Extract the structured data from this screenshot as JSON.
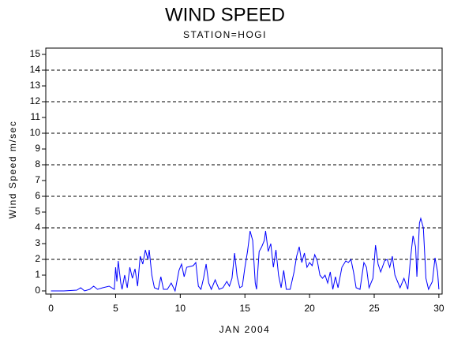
{
  "chart_data": {
    "type": "line",
    "title": "WIND SPEED",
    "subtitle": "STATION=HOGI",
    "xlabel": "JAN 2004",
    "ylabel": "Wind Speed m/sec",
    "color": "#0000ff",
    "x": [
      0,
      1,
      2,
      2.3,
      2.6,
      3,
      3.3,
      3.6,
      4,
      4.5,
      4.9,
      5.0,
      5.1,
      5.2,
      5.4,
      5.5,
      5.7,
      5.9,
      6.1,
      6.3,
      6.5,
      6.7,
      6.9,
      7.1,
      7.3,
      7.5,
      7.6,
      7.8,
      8.0,
      8.3,
      8.5,
      8.7,
      9.0,
      9.3,
      9.6,
      9.9,
      10.1,
      10.3,
      10.5,
      11,
      11.2,
      11.4,
      11.6,
      11.8,
      12.0,
      12.2,
      12.4,
      12.7,
      13.0,
      13.3,
      13.6,
      13.8,
      14.0,
      14.2,
      14.4,
      14.6,
      14.8,
      15.0,
      15.2,
      15.4,
      15.6,
      15.8,
      15.9,
      16.1,
      16.3,
      16.5,
      16.6,
      16.8,
      17.0,
      17.2,
      17.4,
      17.6,
      17.8,
      18.0,
      18.2,
      18.5,
      18.8,
      19.0,
      19.2,
      19.4,
      19.6,
      19.8,
      20.0,
      20.2,
      20.4,
      20.6,
      20.8,
      21.0,
      21.2,
      21.4,
      21.6,
      21.8,
      22.0,
      22.2,
      22.5,
      22.8,
      23.0,
      23.2,
      23.4,
      23.6,
      23.9,
      24.2,
      24.4,
      24.6,
      24.9,
      25.1,
      25.3,
      25.5,
      25.8,
      26.0,
      26.2,
      26.4,
      26.6,
      26.8,
      27.0,
      27.3,
      27.6,
      27.8,
      28.0,
      28.2,
      28.3,
      28.5,
      28.6,
      28.8,
      29.0,
      29.2,
      29.5,
      29.7,
      29.9,
      30.0
    ],
    "values": [
      0,
      0,
      0.05,
      0.2,
      0,
      0.1,
      0.3,
      0.1,
      0.2,
      0.3,
      0.1,
      1.5,
      0.6,
      1.9,
      0.5,
      0.1,
      1.0,
      0.2,
      1.5,
      0.8,
      1.4,
      0.3,
      2.2,
      1.7,
      2.6,
      2.0,
      2.6,
      1.0,
      0.2,
      0.1,
      0.9,
      0.1,
      0.1,
      0.5,
      0,
      1.3,
      1.7,
      0.9,
      1.5,
      1.6,
      1.8,
      0.3,
      0.1,
      0.8,
      1.7,
      0.5,
      0.1,
      0.7,
      0.1,
      0.2,
      0.6,
      0.3,
      0.8,
      2.4,
      0.9,
      0.2,
      0.3,
      1.5,
      2.5,
      3.8,
      3.2,
      0.5,
      0.1,
      2.5,
      2.8,
      3.2,
      3.8,
      2.5,
      3.0,
      1.5,
      2.6,
      1.0,
      0.2,
      1.3,
      0.1,
      0.1,
      1.2,
      2.2,
      2.8,
      1.8,
      2.4,
      1.5,
      1.8,
      1.6,
      2.3,
      1.9,
      1.0,
      0.8,
      1.0,
      0.5,
      1.2,
      0.1,
      0.9,
      0.2,
      1.5,
      1.9,
      1.8,
      2.0,
      1.2,
      0.2,
      0.1,
      1.8,
      1.5,
      0.2,
      0.8,
      2.9,
      1.7,
      1.2,
      1.9,
      2.0,
      1.5,
      2.2,
      1.0,
      0.6,
      0.2,
      0.8,
      0.1,
      2.0,
      3.5,
      2.8,
      0.9,
      4.3,
      4.6,
      4.0,
      0.8,
      0.1,
      0.6,
      2.1,
      1.2,
      0.1
    ],
    "xlim": [
      -0.4,
      30.25
    ],
    "ylim": [
      -0.2,
      15.4
    ],
    "xticks": [
      0,
      5,
      10,
      15,
      20,
      25,
      30
    ],
    "yticks": [
      0,
      1,
      2,
      3,
      4,
      5,
      6,
      7,
      8,
      9,
      10,
      11,
      12,
      13,
      14,
      15
    ],
    "grid_lines": [
      2,
      4,
      6,
      8,
      10,
      12,
      14
    ]
  }
}
